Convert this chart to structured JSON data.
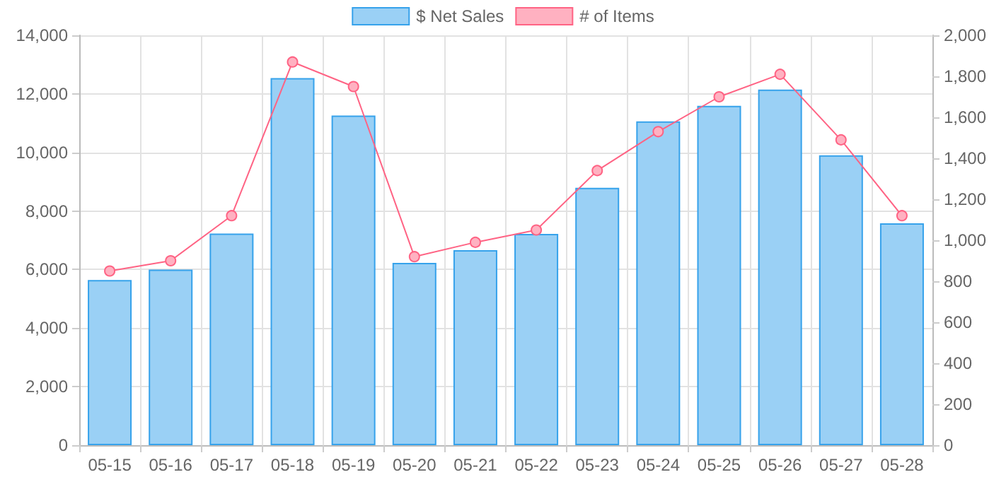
{
  "chart_data": {
    "type": "bar",
    "categories": [
      "05-15",
      "05-16",
      "05-17",
      "05-18",
      "05-19",
      "05-20",
      "05-21",
      "05-22",
      "05-23",
      "05-24",
      "05-25",
      "05-26",
      "05-27",
      "05-28"
    ],
    "series": [
      {
        "name": "$ Net Sales",
        "color": "#9ad0f5",
        "values": [
          5640,
          6000,
          7230,
          12540,
          11260,
          6230,
          6660,
          7220,
          8790,
          11060,
          11590,
          12150,
          9900,
          7580
        ]
      },
      {
        "name": "# of Items",
        "type": "line",
        "axis": "y2",
        "color": "#ff6384",
        "marker": "circle",
        "values": [
          850,
          900,
          1120,
          1870,
          1750,
          920,
          990,
          1050,
          1340,
          1530,
          1700,
          1810,
          1490,
          1120
        ]
      }
    ],
    "ylim": [
      0,
      14000
    ],
    "yticks": [
      0,
      {
        "value": 2000,
        "label": "2,000"
      },
      {
        "value": 4000,
        "label": "4,000"
      },
      {
        "value": 6000,
        "label": "6,000"
      },
      {
        "value": 8000,
        "label": "8,000"
      },
      {
        "value": 10000,
        "label": "10,000"
      },
      {
        "value": 12000,
        "label": "12,000"
      },
      {
        "value": 14000,
        "label": "14,000"
      }
    ],
    "y2lim": [
      0,
      2000
    ],
    "y2ticks": [
      0,
      200,
      400,
      600,
      800,
      {
        "value": 1000,
        "label": "1,000"
      },
      {
        "value": 1200,
        "label": "1,200"
      },
      {
        "value": 1400,
        "label": "1,400"
      },
      {
        "value": 1600,
        "label": "1,600"
      },
      {
        "value": 1800,
        "label": "1,800"
      },
      {
        "value": 2000,
        "label": "2,000"
      }
    ],
    "grid": true,
    "legend": "top"
  }
}
